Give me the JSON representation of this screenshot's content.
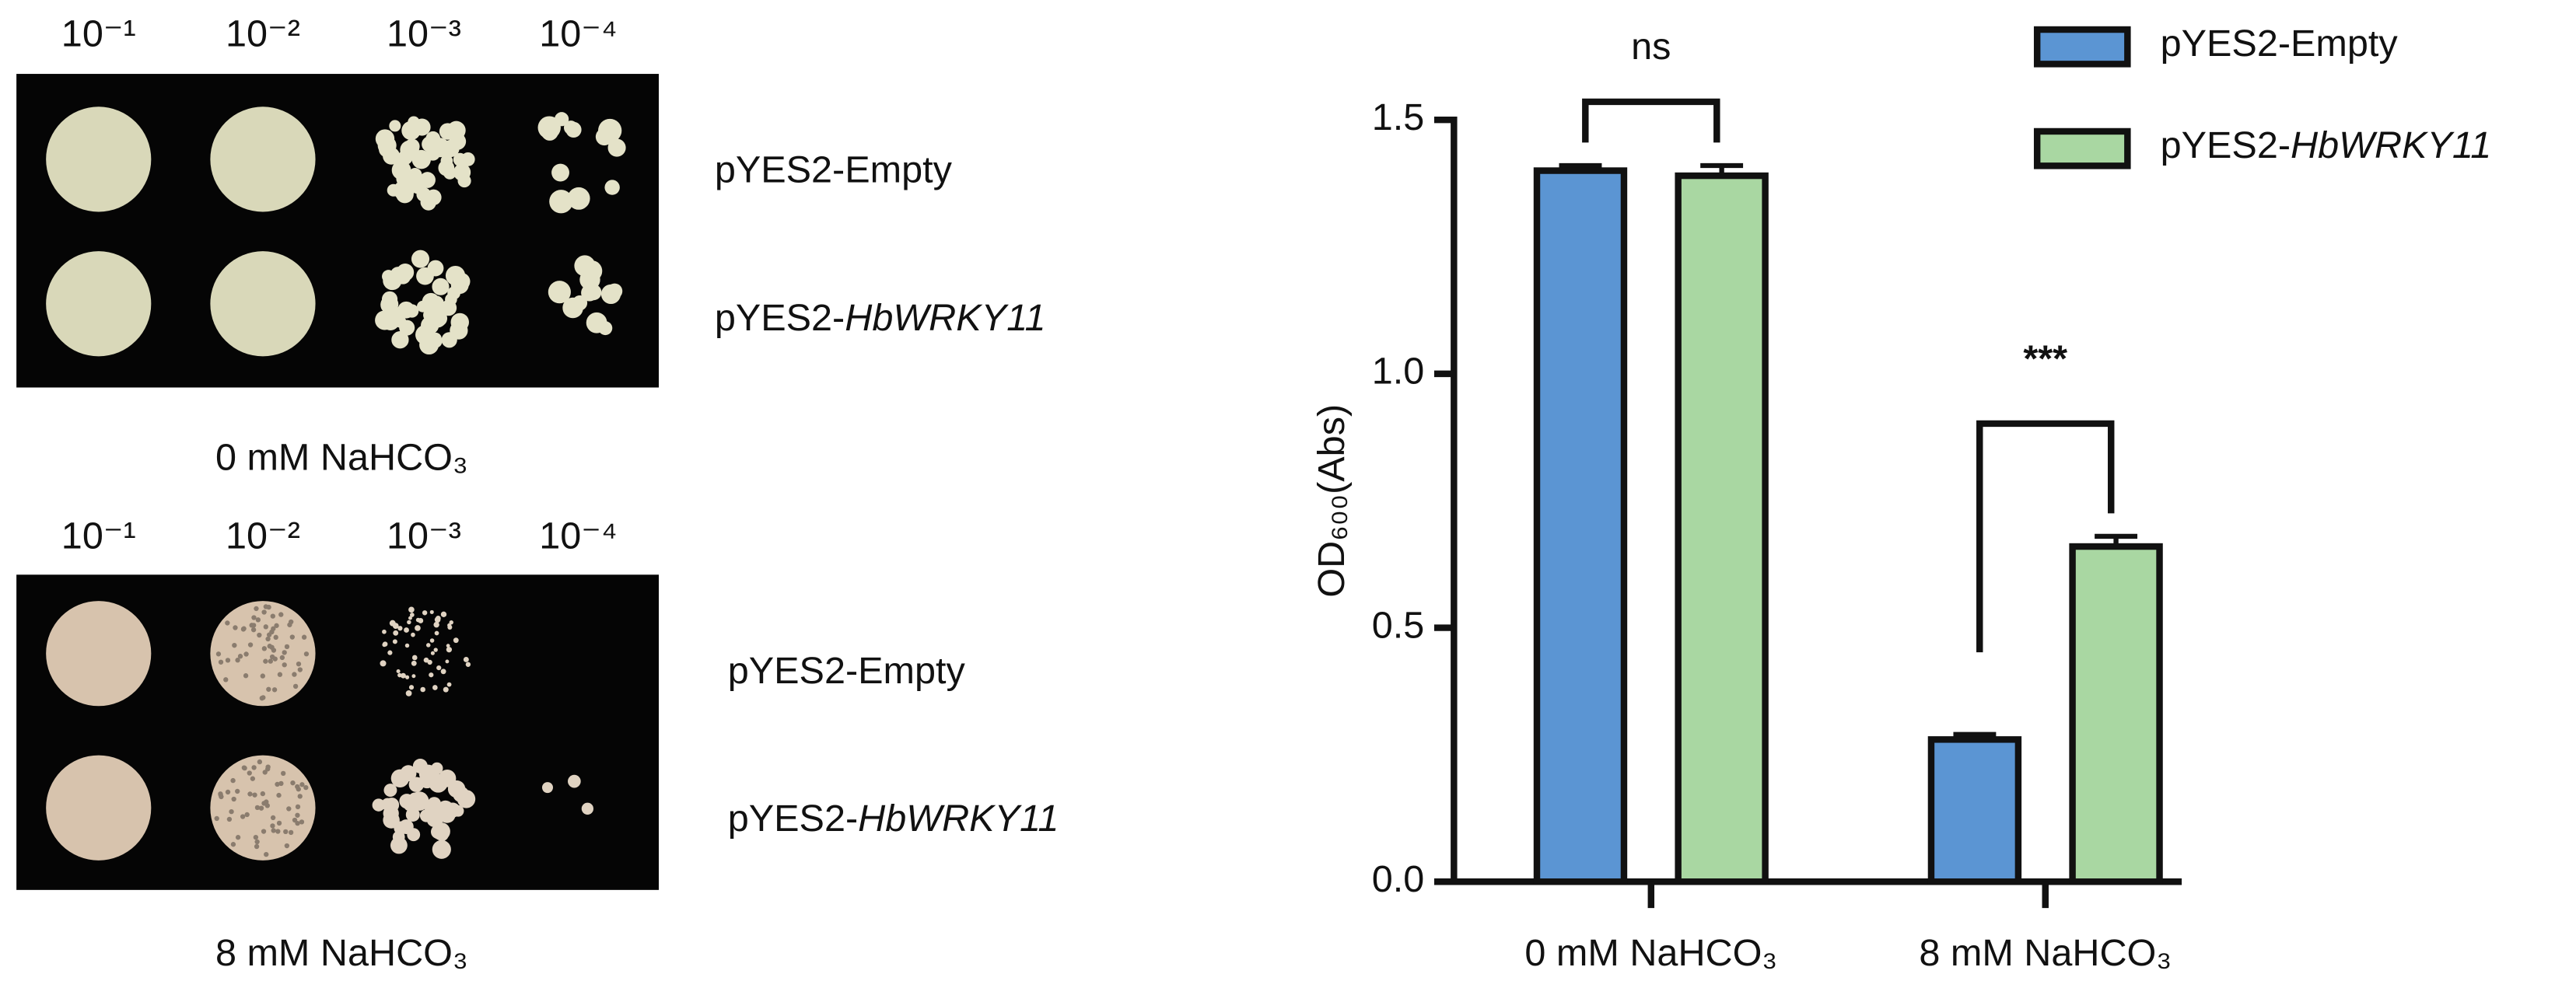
{
  "spot_assay": {
    "panels": [
      {
        "dilutions": [
          "10⁻¹",
          "10⁻²",
          "10⁻³",
          "10⁻⁴"
        ],
        "rows": [
          "pYES2-Empty",
          "pYES2-HbWRKY11"
        ],
        "condition": "0 mM NaHCO₃"
      },
      {
        "dilutions": [
          "10⁻¹",
          "10⁻²",
          "10⁻³",
          "10⁻⁴"
        ],
        "rows": [
          "pYES2-Empty",
          "pYES2-HbWRKY11"
        ],
        "condition": "8 mM NaHCO₃"
      }
    ]
  },
  "chart_data": {
    "type": "bar",
    "y_label": "OD₆₀₀(Abs)",
    "categories": [
      "0 mM NaHCO₃",
      "8 mM NaHCO₃"
    ],
    "series": [
      {
        "name": "pYES2-Empty",
        "color": "#5b95d3",
        "values": [
          1.4,
          0.28
        ],
        "errors": [
          0.01,
          0.01
        ]
      },
      {
        "name": "pYES2-HbWRKY11",
        "color": "#a9d7a2",
        "values": [
          1.39,
          0.66
        ],
        "errors": [
          0.02,
          0.02
        ]
      }
    ],
    "ylim": [
      0,
      1.5
    ],
    "yticks": [
      {
        "value": 0,
        "label": "0.0"
      },
      {
        "value": 0.5,
        "label": "0.5"
      },
      {
        "value": 1,
        "label": "1.0"
      },
      {
        "value": 1.5,
        "label": "1.5"
      }
    ],
    "annotations": [
      "ns",
      "***"
    ],
    "legend": "top-right"
  }
}
